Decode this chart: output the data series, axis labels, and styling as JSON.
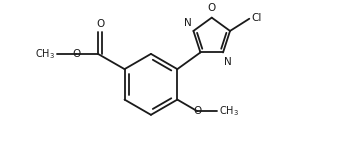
{
  "bg_color": "#ffffff",
  "line_color": "#1a1a1a",
  "line_width": 1.3,
  "font_size": 7.5,
  "figure_width": 3.5,
  "figure_height": 1.46,
  "dpi": 100,
  "xlim": [
    0.0,
    9.5
  ],
  "ylim": [
    0.3,
    4.8
  ]
}
